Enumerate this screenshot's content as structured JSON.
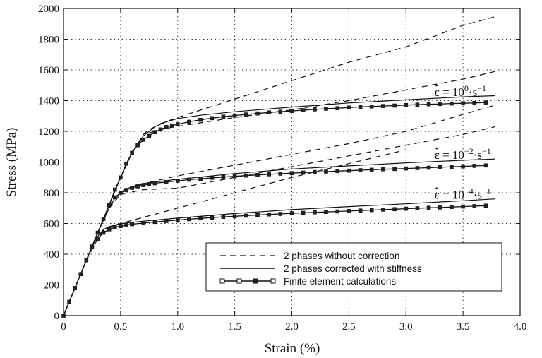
{
  "chart_data": {
    "type": "line",
    "xlabel": "Strain (%)",
    "ylabel": "Stress (MPa)",
    "xlim": [
      0,
      4.0
    ],
    "ylim": [
      0,
      2000
    ],
    "xticks": [
      0,
      0.5,
      1.0,
      1.5,
      2.0,
      2.5,
      3.0,
      3.5,
      4.0
    ],
    "xtick_labels": [
      "0",
      "0.5",
      "1.0",
      "1.5",
      "2.0",
      "2.5",
      "3.0",
      "3.5",
      "4.0"
    ],
    "yticks": [
      0,
      200,
      400,
      600,
      800,
      1000,
      1200,
      1400,
      1600,
      1800,
      2000
    ],
    "ytick_labels": [
      "0",
      "200",
      "400",
      "600",
      "800",
      "1000",
      "1200",
      "1400",
      "1600",
      "1800",
      "2000"
    ],
    "grid": true,
    "legend_position": "bottom-right",
    "legend": [
      {
        "label": "2 phases without correction",
        "style": "dashed"
      },
      {
        "label": "2 phases corrected with stiffness",
        "style": "solid"
      },
      {
        "label": "Finite element calculations",
        "style": "solid-markers"
      }
    ],
    "rate_labels": [
      {
        "base": "ε = 10",
        "exp": "0",
        "unit": "·s",
        "unit_exp": "−1",
        "x": 3.25,
        "y": 1430
      },
      {
        "base": "ε = 10",
        "exp": "−2",
        "unit": "·s",
        "unit_exp": "−1",
        "x": 3.25,
        "y": 1020
      },
      {
        "base": "ε = 10",
        "exp": "−4",
        "unit": "·s",
        "unit_exp": "−1",
        "x": 3.25,
        "y": 760
      }
    ],
    "series": [
      {
        "style": "dashed",
        "x": [
          0,
          0.1,
          0.2,
          0.3,
          0.4,
          0.5,
          0.6,
          0.7,
          0.75,
          0.85,
          1.0,
          1.5,
          2.0,
          2.5,
          3.0,
          3.5,
          3.8
        ],
        "y": [
          0,
          180,
          360,
          540,
          720,
          900,
          1060,
          1180,
          1210,
          1250,
          1290,
          1410,
          1530,
          1650,
          1750,
          1890,
          1950
        ]
      },
      {
        "style": "dashed",
        "x": [
          0.75,
          0.9,
          1.0,
          1.5,
          2.0,
          2.5,
          3.0,
          3.5,
          3.78
        ],
        "y": [
          1190,
          1220,
          1232,
          1290,
          1340,
          1400,
          1470,
          1540,
          1590
        ]
      },
      {
        "style": "dashed",
        "x": [
          0,
          0.1,
          0.2,
          0.3,
          0.4,
          0.5,
          0.55,
          0.7,
          1.0,
          1.5,
          2.0,
          2.5,
          3.0,
          3.5,
          3.78
        ],
        "y": [
          0,
          180,
          360,
          540,
          720,
          800,
          830,
          860,
          910,
          980,
          1050,
          1120,
          1200,
          1310,
          1370
        ]
      },
      {
        "style": "dashed",
        "x": [
          0.4,
          0.5,
          0.7,
          1.0,
          1.5,
          2.0,
          2.5,
          3.0,
          3.5,
          3.78
        ],
        "y": [
          700,
          790,
          820,
          830,
          900,
          970,
          1040,
          1110,
          1180,
          1230
        ]
      },
      {
        "style": "dashed",
        "x": [
          0,
          0.1,
          0.2,
          0.3,
          0.35,
          0.45,
          0.55,
          0.7,
          1.0,
          1.5,
          2.0,
          2.5,
          3.0
        ],
        "y": [
          0,
          180,
          360,
          500,
          555,
          590,
          610,
          640,
          700,
          800,
          900,
          990,
          1080
        ]
      },
      {
        "style": "solid",
        "x": [
          0,
          0.1,
          0.2,
          0.3,
          0.4,
          0.5,
          0.6,
          0.7,
          0.75,
          0.8,
          0.9,
          1.0,
          1.2,
          1.5,
          2.0,
          2.5,
          3.0,
          3.5,
          3.78
        ],
        "y": [
          0,
          180,
          360,
          540,
          720,
          900,
          1060,
          1170,
          1200,
          1230,
          1262,
          1283,
          1305,
          1328,
          1358,
          1385,
          1405,
          1425,
          1432
        ]
      },
      {
        "style": "solid",
        "x": [
          0,
          0.1,
          0.2,
          0.3,
          0.4,
          0.45,
          0.5,
          0.55,
          0.6,
          0.7,
          0.8,
          1.0,
          1.5,
          2.0,
          2.5,
          3.0,
          3.5,
          3.78
        ],
        "y": [
          0,
          180,
          360,
          540,
          700,
          765,
          800,
          825,
          840,
          858,
          870,
          888,
          925,
          955,
          975,
          995,
          1012,
          1020
        ]
      },
      {
        "style": "solid",
        "x": [
          0,
          0.1,
          0.2,
          0.25,
          0.3,
          0.35,
          0.4,
          0.5,
          0.6,
          0.8,
          1.0,
          1.5,
          2.0,
          2.5,
          3.0,
          3.5,
          3.78
        ],
        "y": [
          0,
          180,
          360,
          450,
          515,
          560,
          580,
          598,
          608,
          622,
          635,
          665,
          690,
          710,
          728,
          748,
          760
        ]
      },
      {
        "style": "markers",
        "x": [
          0,
          0.05,
          0.1,
          0.15,
          0.2,
          0.25,
          0.3,
          0.35,
          0.4,
          0.45,
          0.5,
          0.55,
          0.6,
          0.65,
          0.7,
          0.75,
          0.8,
          0.85,
          0.9,
          0.95,
          1.0,
          1.1,
          1.2,
          1.3,
          1.4,
          1.5,
          1.6,
          1.7,
          1.8,
          1.9,
          2.0,
          2.1,
          2.2,
          2.3,
          2.4,
          2.5,
          2.6,
          2.7,
          2.8,
          2.9,
          3.0,
          3.1,
          3.2,
          3.3,
          3.4,
          3.5,
          3.6,
          3.7
        ],
        "y": [
          0,
          90,
          180,
          270,
          360,
          450,
          540,
          630,
          720,
          820,
          900,
          990,
          1060,
          1110,
          1145,
          1170,
          1195,
          1212,
          1228,
          1238,
          1246,
          1262,
          1275,
          1286,
          1295,
          1303,
          1310,
          1317,
          1323,
          1328,
          1333,
          1338,
          1343,
          1347,
          1351,
          1355,
          1359,
          1362,
          1365,
          1368,
          1371,
          1374,
          1376,
          1378,
          1381,
          1383,
          1385,
          1388
        ]
      },
      {
        "style": "markers",
        "x": [
          0.45,
          0.5,
          0.55,
          0.6,
          0.65,
          0.7,
          0.75,
          0.8,
          0.9,
          1.0,
          1.1,
          1.2,
          1.3,
          1.4,
          1.5,
          1.6,
          1.7,
          1.8,
          1.9,
          2.0,
          2.1,
          2.2,
          2.3,
          2.4,
          2.5,
          2.6,
          2.7,
          2.8,
          2.9,
          3.0,
          3.1,
          3.2,
          3.3,
          3.4,
          3.5,
          3.6,
          3.7
        ],
        "y": [
          770,
          800,
          818,
          832,
          842,
          850,
          856,
          862,
          870,
          878,
          885,
          891,
          897,
          902,
          907,
          912,
          916,
          920,
          924,
          928,
          931,
          935,
          938,
          941,
          944,
          947,
          950,
          953,
          955,
          958,
          961,
          963,
          966,
          969,
          972,
          975,
          978
        ]
      },
      {
        "style": "markers",
        "x": [
          0.3,
          0.35,
          0.4,
          0.45,
          0.5,
          0.55,
          0.6,
          0.7,
          0.8,
          0.9,
          1.0,
          1.1,
          1.2,
          1.3,
          1.4,
          1.5,
          1.6,
          1.7,
          1.8,
          1.9,
          2.0,
          2.1,
          2.2,
          2.3,
          2.4,
          2.5,
          2.6,
          2.7,
          2.8,
          2.9,
          3.0,
          3.1,
          3.2,
          3.3,
          3.4,
          3.5,
          3.6,
          3.7
        ],
        "y": [
          500,
          540,
          562,
          575,
          583,
          590,
          595,
          603,
          610,
          616,
          622,
          628,
          633,
          638,
          643,
          647,
          651,
          655,
          659,
          662,
          666,
          669,
          672,
          675,
          678,
          681,
          684,
          687,
          690,
          693,
          696,
          699,
          702,
          704,
          707,
          710,
          713,
          716
        ]
      }
    ]
  }
}
